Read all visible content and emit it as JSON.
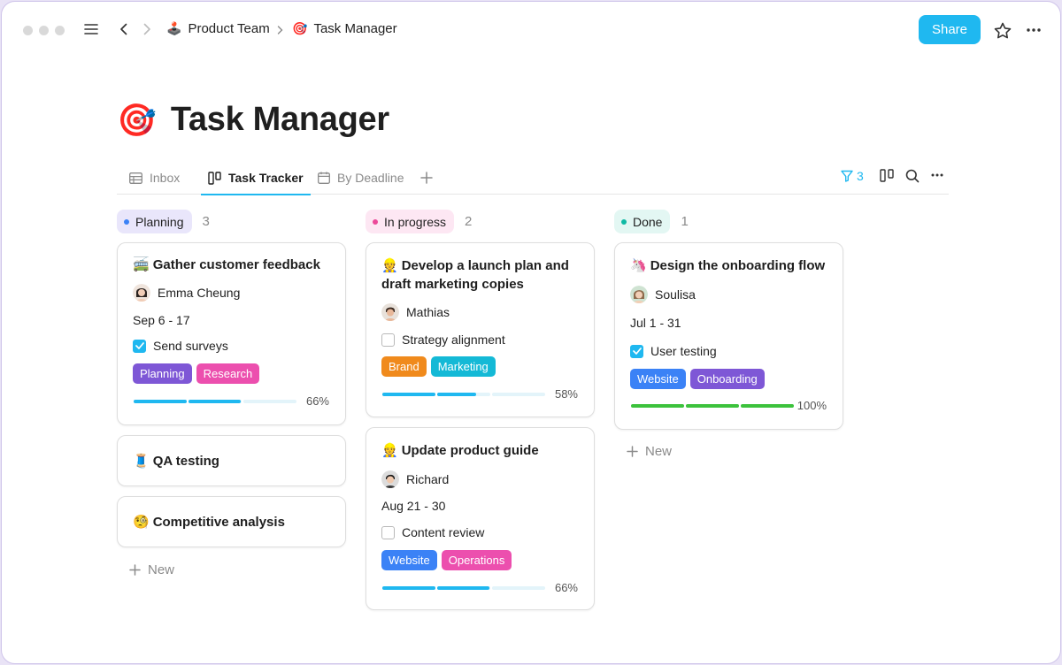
{
  "breadcrumb": {
    "workspace": {
      "emoji": "🕹️",
      "label": "Product Team"
    },
    "page": {
      "emoji": "🎯",
      "label": "Task Manager"
    }
  },
  "header": {
    "share_label": "Share"
  },
  "page": {
    "emoji": "🎯",
    "title": "Task Manager"
  },
  "views": {
    "tabs": [
      {
        "label": "Inbox",
        "icon": "table-icon"
      },
      {
        "label": "Task Tracker",
        "icon": "board-icon"
      },
      {
        "label": "By Deadline",
        "icon": "calendar-icon"
      }
    ],
    "filter_count": "3"
  },
  "colors": {
    "accent": "#1fb8f0"
  },
  "board": {
    "new_label": "New",
    "columns": [
      {
        "name": "Planning",
        "count": "3",
        "dot": "#3b82f6",
        "bg": "#e9e6fb",
        "cards": [
          {
            "emoji": "🚎",
            "title": "Gather customer feedback",
            "assignee": "Emma Cheung",
            "dates": "Sep 6 - 17",
            "check": {
              "label": "Send surveys",
              "checked": true
            },
            "tags": [
              {
                "label": "Planning",
                "color": "#7e57d6"
              },
              {
                "label": "Research",
                "color": "#ec4fae"
              }
            ],
            "progress": {
              "label": "66%",
              "value": 0.66
            }
          },
          {
            "emoji": "🧵",
            "title": "QA testing"
          },
          {
            "emoji": "🧐",
            "title": "Competitive analysis"
          }
        ]
      },
      {
        "name": "In progress",
        "count": "2",
        "dot": "#ec4899",
        "bg": "#fde7f3",
        "cards": [
          {
            "emoji": "👷",
            "title": "Develop a launch plan and draft marketing copies",
            "assignee": "Mathias",
            "check": {
              "label": "Strategy alignment",
              "checked": false
            },
            "tags": [
              {
                "label": "Brand",
                "color": "#f08a1c"
              },
              {
                "label": "Marketing",
                "color": "#14b9d6"
              }
            ],
            "progress": {
              "label": "58%",
              "value": 0.58
            }
          },
          {
            "emoji": "👷",
            "title": "Update product guide",
            "assignee": "Richard",
            "dates": "Aug 21 - 30",
            "check": {
              "label": "Content review",
              "checked": false
            },
            "tags": [
              {
                "label": "Website",
                "color": "#3b82f6"
              },
              {
                "label": "Operations",
                "color": "#ec4fae"
              }
            ],
            "progress": {
              "label": "66%",
              "value": 0.66
            }
          }
        ]
      },
      {
        "name": "Done",
        "count": "1",
        "dot": "#10b9a4",
        "bg": "#e3f7f3",
        "cards": [
          {
            "emoji": "🦄",
            "title": "Design the onboarding flow",
            "assignee": "Soulisa",
            "dates": "Jul 1 - 31",
            "check": {
              "label": "User testing",
              "checked": true
            },
            "tags": [
              {
                "label": "Website",
                "color": "#3b82f6"
              },
              {
                "label": "Onboarding",
                "color": "#7e57d6"
              }
            ],
            "progress": {
              "label": "100%",
              "value": 1.0
            }
          }
        ]
      }
    ]
  }
}
